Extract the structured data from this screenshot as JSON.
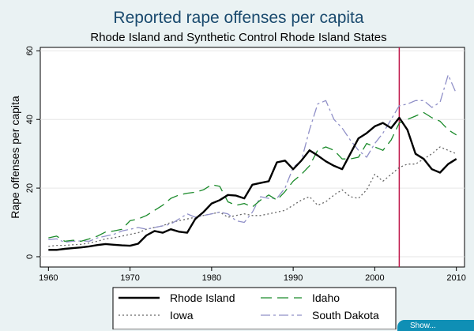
{
  "chart_data": {
    "type": "line",
    "title": "Reported rape offenses per capita",
    "subtitle": "Rhode Island and Synthetic Control Rhode Island States",
    "xlabel": "",
    "ylabel": "Rape offenses per capita",
    "xlim": [
      1959,
      2011
    ],
    "ylim": [
      -3,
      61
    ],
    "xticks": [
      1960,
      1970,
      1980,
      1990,
      2000,
      2010
    ],
    "yticks": [
      0,
      20,
      40,
      60
    ],
    "vline": {
      "x": 2003,
      "color": "#c0174a"
    },
    "x": [
      1960,
      1961,
      1962,
      1963,
      1964,
      1965,
      1966,
      1967,
      1968,
      1969,
      1970,
      1971,
      1972,
      1973,
      1974,
      1975,
      1976,
      1977,
      1978,
      1979,
      1980,
      1981,
      1982,
      1983,
      1984,
      1985,
      1986,
      1987,
      1988,
      1989,
      1990,
      1991,
      1992,
      1993,
      1994,
      1995,
      1996,
      1997,
      1998,
      1999,
      2000,
      2001,
      2002,
      2003,
      2004,
      2005,
      2006,
      2007,
      2008,
      2009,
      2010
    ],
    "series": [
      {
        "name": "Rhode Island",
        "style": "solid",
        "color": "#000000",
        "values": [
          2,
          2,
          2.3,
          2.5,
          2.7,
          3,
          3.4,
          3.7,
          3.5,
          3.3,
          3.2,
          3.8,
          6.2,
          7.5,
          7,
          8,
          7.3,
          7,
          11,
          13,
          15.5,
          16.5,
          18,
          17.8,
          17,
          21,
          21.5,
          22,
          27.5,
          28,
          25.5,
          28,
          31,
          29.5,
          27.8,
          26.5,
          25.5,
          30,
          34.5,
          36,
          38,
          39,
          37.5,
          40.5,
          37,
          30,
          28.5,
          25.5,
          24.5,
          27,
          28.5
        ]
      },
      {
        "name": "Idaho",
        "style": "longdash",
        "color": "#1a8a2a",
        "values": [
          5.5,
          6,
          4.5,
          4.8,
          4.5,
          5.2,
          6,
          7.2,
          7.5,
          8,
          10.5,
          11,
          12,
          13.5,
          15,
          17,
          18,
          18.5,
          18.8,
          19.5,
          21,
          20.5,
          16,
          15,
          15.5,
          14.5,
          16.5,
          18,
          16.5,
          19,
          22,
          24,
          26.5,
          31,
          32,
          31,
          28.5,
          28.5,
          29,
          33,
          32,
          31,
          34,
          39,
          40,
          41,
          42,
          40.5,
          39.5,
          37,
          35.5
        ]
      },
      {
        "name": "Iowa",
        "style": "dotted",
        "color": "#666666",
        "values": [
          3,
          3.3,
          3.3,
          3.5,
          3.6,
          4,
          4.5,
          5.2,
          5.5,
          6,
          6.5,
          7,
          8,
          8.5,
          9,
          10,
          10.5,
          11,
          11.5,
          12,
          12.5,
          13,
          11.5,
          12,
          12.5,
          12,
          12,
          12.5,
          13,
          13.5,
          15,
          16.5,
          17.5,
          15,
          16,
          18,
          19.5,
          17.5,
          17,
          19.5,
          24,
          22,
          24,
          26,
          27,
          27,
          28.5,
          30,
          32,
          31,
          30
        ]
      },
      {
        "name": "South Dakota",
        "style": "dashdot",
        "color": "#9090c8",
        "values": [
          5,
          5.2,
          4.2,
          4.5,
          4.6,
          4.5,
          5.5,
          6,
          6.5,
          7.5,
          8,
          8.5,
          8,
          8.5,
          9,
          9.5,
          11,
          12.5,
          11.5,
          12,
          12.5,
          13,
          12.5,
          10.5,
          10,
          13,
          17.5,
          17,
          17,
          20,
          26,
          28,
          37,
          44.5,
          45.5,
          40,
          37.5,
          34,
          31,
          29,
          33,
          36,
          40,
          44,
          44.5,
          45.5,
          45.5,
          43.5,
          45,
          53,
          47.5
        ]
      }
    ]
  },
  "ui": {
    "show_button": "Show..."
  }
}
